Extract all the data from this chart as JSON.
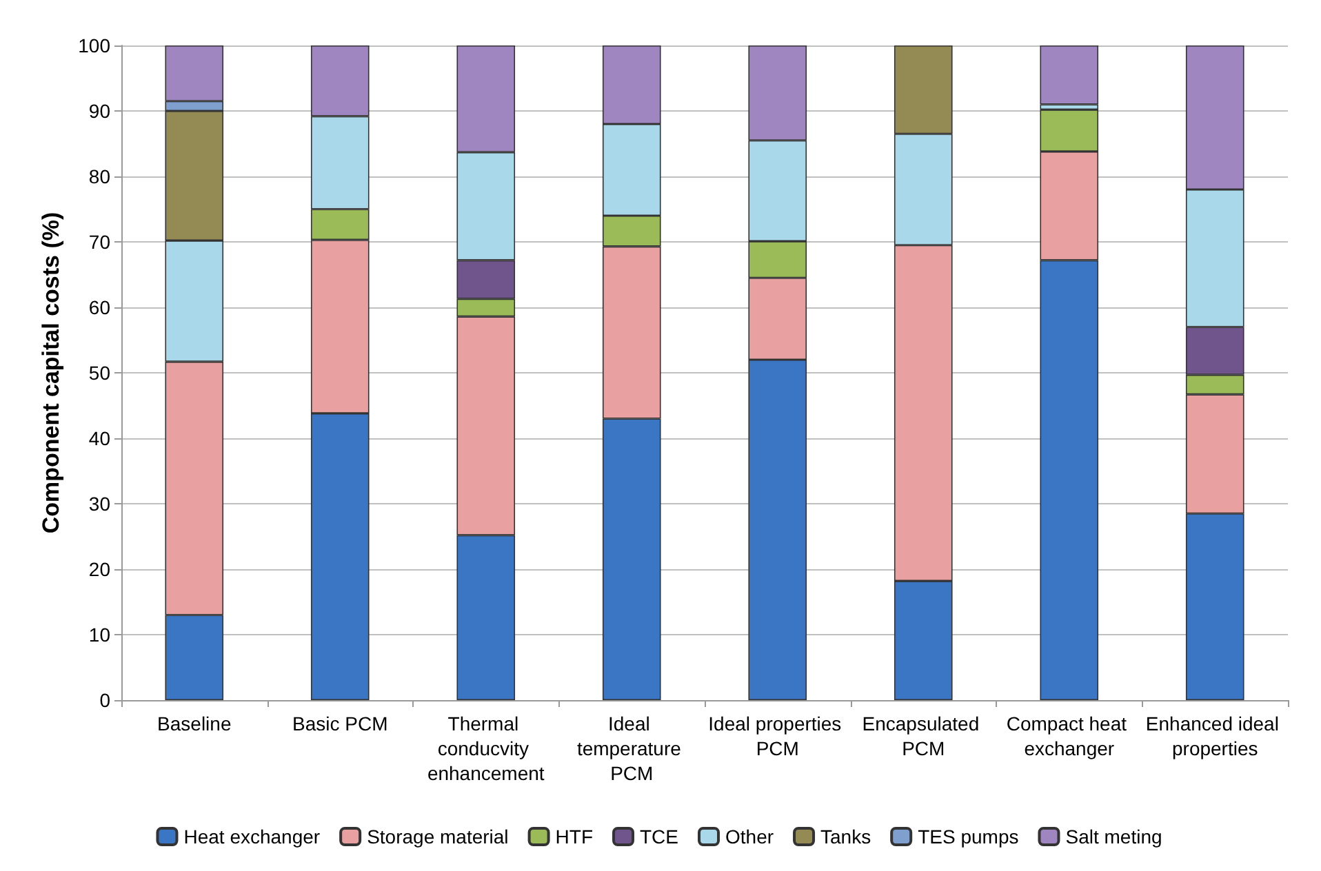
{
  "chart_data": {
    "type": "bar",
    "stacked": true,
    "ylabel": "Component capital costs (%)",
    "categories": [
      "Baseline",
      "Basic PCM",
      "Thermal conducvity enhancement",
      "Ideal temperature PCM",
      "Ideal properties PCM",
      "Encapsulated PCM",
      "Compact heat exchanger",
      "Enhanced ideal properties"
    ],
    "series": [
      {
        "name": "Heat exchanger",
        "color": "#3a76c4",
        "values": [
          13,
          43.8,
          25.2,
          43,
          52,
          18.2,
          67.2,
          28.5
        ]
      },
      {
        "name": "Storage material",
        "color": "#e8a0a0",
        "values": [
          38.7,
          26.5,
          33.4,
          26.3,
          12.5,
          51.3,
          16.6,
          18.2
        ]
      },
      {
        "name": "HTF",
        "color": "#9bbb59",
        "values": [
          null,
          4.7,
          2.7,
          4.7,
          5.6,
          null,
          6.4,
          3
        ]
      },
      {
        "name": "TCE",
        "color": "#70558c",
        "values": [
          null,
          null,
          5.9,
          null,
          null,
          null,
          null,
          7.3
        ]
      },
      {
        "name": "Other",
        "color": "#a8d8ea",
        "values": [
          18.5,
          14.2,
          16.5,
          14,
          15.4,
          17,
          0.8,
          21
        ]
      },
      {
        "name": "Tanks",
        "color": "#948a54",
        "values": [
          19.8,
          null,
          null,
          null,
          null,
          13.5,
          null,
          null
        ]
      },
      {
        "name": "TES pumps",
        "color": "#7f9fcf",
        "values": [
          1.5,
          null,
          null,
          null,
          null,
          null,
          null,
          null
        ]
      },
      {
        "name": "Salt meting",
        "color": "#9f86c0",
        "values": [
          8.5,
          10.8,
          16.3,
          12,
          14.5,
          null,
          9,
          22
        ]
      }
    ],
    "ylim": [
      0,
      100
    ],
    "yticks": [
      0,
      10,
      20,
      30,
      40,
      50,
      60,
      70,
      80,
      90,
      100
    ],
    "grid": "y",
    "legend": "bottom"
  }
}
